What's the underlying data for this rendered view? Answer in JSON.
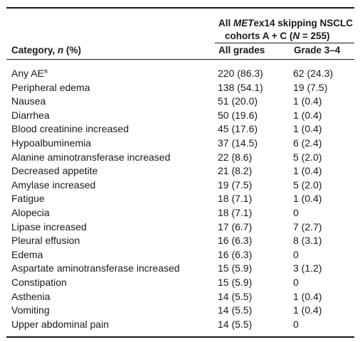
{
  "header": {
    "group_line1_italic": "MET",
    "group_line1_rest": "ex14 skipping NSCLC",
    "group_line1_prefix": "All ",
    "group_line2_prefix": "cohorts A + C (",
    "group_line2_italic": "N",
    "group_line2_suffix": " = 255)",
    "category_prefix": "Category, ",
    "category_italic": "n",
    "category_suffix": " (%)",
    "col_all_grades": "All grades",
    "col_grade34": "Grade 3–4"
  },
  "rows": [
    {
      "category": "Any AE",
      "sup": "a",
      "all": "220 (86.3)",
      "g34": "62 (24.3)"
    },
    {
      "category": "Peripheral edema",
      "all": "138 (54.1)",
      "g34": "19 (7.5)"
    },
    {
      "category": "Nausea",
      "all": "51 (20.0)",
      "g34": "1 (0.4)"
    },
    {
      "category": "Diarrhea",
      "all": "50 (19.6)",
      "g34": "1 (0.4)"
    },
    {
      "category": "Blood creatinine increased",
      "all": "45 (17.6)",
      "g34": "1 (0.4)"
    },
    {
      "category": "Hypoalbuminemia",
      "all": "37 (14.5)",
      "g34": "6 (2.4)"
    },
    {
      "category": "Alanine aminotransferase increased",
      "all": "22 (8.6)",
      "g34": "5 (2.0)"
    },
    {
      "category": "Decreased appetite",
      "all": "21 (8.2)",
      "g34": "1 (0.4)"
    },
    {
      "category": "Amylase increased",
      "all": "19 (7.5)",
      "g34": "5 (2.0)"
    },
    {
      "category": "Fatigue",
      "all": "18 (7.1)",
      "g34": "1 (0.4)"
    },
    {
      "category": "Alopecia",
      "all": "18 (7.1)",
      "g34": "0"
    },
    {
      "category": "Lipase increased",
      "all": "17 (6.7)",
      "g34": "7 (2.7)"
    },
    {
      "category": "Pleural effusion",
      "all": "16 (6.3)",
      "g34": "8 (3.1)"
    },
    {
      "category": "Edema",
      "all": "16 (6.3)",
      "g34": "0"
    },
    {
      "category": "Aspartate aminotransferase increased",
      "all": "15 (5.9)",
      "g34": "3 (1.2)"
    },
    {
      "category": "Constipation",
      "all": "15 (5.9)",
      "g34": "0"
    },
    {
      "category": "Asthenia",
      "all": "14 (5.5)",
      "g34": "1 (0.4)"
    },
    {
      "category": "Vomiting",
      "all": "14 (5.5)",
      "g34": "1 (0.4)"
    },
    {
      "category": "Upper abdominal pain",
      "all": "14 (5.5)",
      "g34": "0"
    }
  ]
}
